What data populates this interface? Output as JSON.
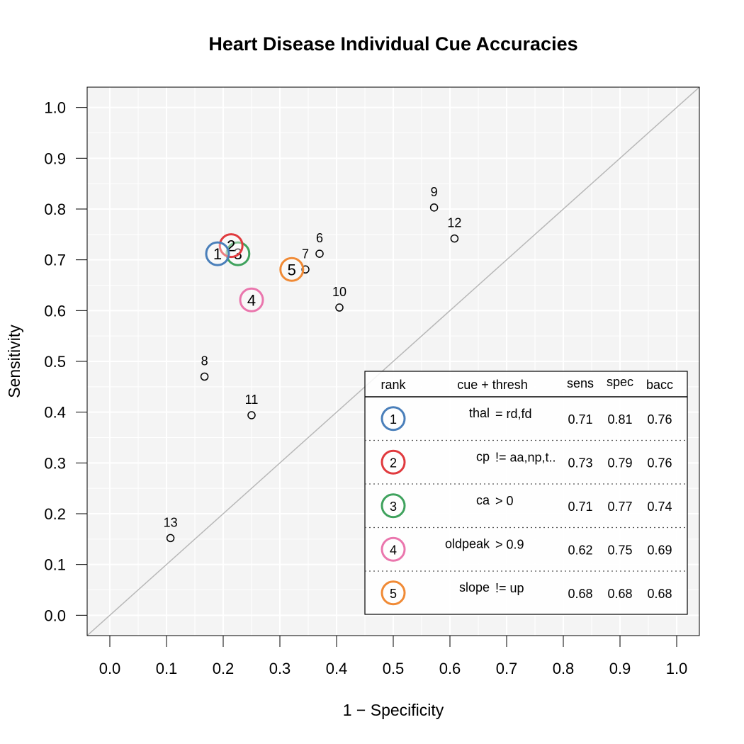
{
  "chart_data": {
    "type": "scatter",
    "title": "Heart Disease Individual Cue Accuracies",
    "xlabel": "1 − Specificity",
    "ylabel": "Sensitivity",
    "xlim": [
      -0.04,
      1.04
    ],
    "ylim": [
      -0.04,
      1.04
    ],
    "x_ticks": [
      "0.0",
      "0.1",
      "0.2",
      "0.3",
      "0.4",
      "0.5",
      "0.6",
      "0.7",
      "0.8",
      "0.9",
      "1.0"
    ],
    "y_ticks": [
      "0.0",
      "0.1",
      "0.2",
      "0.3",
      "0.4",
      "0.5",
      "0.6",
      "0.7",
      "0.8",
      "0.9",
      "1.0"
    ],
    "grid": true,
    "diagonal_reference_line": true,
    "points": [
      {
        "label": "6",
        "x": 0.37,
        "y": 0.712
      },
      {
        "label": "7",
        "x": 0.345,
        "y": 0.681
      },
      {
        "label": "8",
        "x": 0.167,
        "y": 0.47
      },
      {
        "label": "9",
        "x": 0.572,
        "y": 0.803
      },
      {
        "label": "10",
        "x": 0.405,
        "y": 0.606
      },
      {
        "label": "11",
        "x": 0.25,
        "y": 0.394
      },
      {
        "label": "12",
        "x": 0.608,
        "y": 0.742
      },
      {
        "label": "13",
        "x": 0.107,
        "y": 0.152
      }
    ],
    "top_cues": [
      {
        "rank": "1",
        "x": 0.19,
        "y": 0.712,
        "color": "#4a7fba"
      },
      {
        "rank": "2",
        "x": 0.214,
        "y": 0.728,
        "color": "#e03a3e"
      },
      {
        "rank": "3",
        "x": 0.226,
        "y": 0.712,
        "color": "#3fa25d"
      },
      {
        "rank": "4",
        "x": 0.25,
        "y": 0.621,
        "color": "#ea76ad"
      },
      {
        "rank": "5",
        "x": 0.321,
        "y": 0.681,
        "color": "#f08a35"
      }
    ],
    "legend": {
      "position": "bottom-right",
      "headers": {
        "rank": "rank",
        "cue": "cue + thresh",
        "sens": "sens",
        "spec": "spec",
        "bacc": "bacc"
      },
      "rows": [
        {
          "rank": "1",
          "cue": "thal",
          "thresh": "= rd,fd",
          "sens": "0.71",
          "spec": "0.81",
          "bacc": "0.76",
          "color": "#4a7fba"
        },
        {
          "rank": "2",
          "cue": "cp",
          "thresh": "!= aa,np,t..",
          "sens": "0.73",
          "spec": "0.79",
          "bacc": "0.76",
          "color": "#e03a3e"
        },
        {
          "rank": "3",
          "cue": "ca",
          "thresh": "> 0",
          "sens": "0.71",
          "spec": "0.77",
          "bacc": "0.74",
          "color": "#3fa25d"
        },
        {
          "rank": "4",
          "cue": "oldpeak",
          "thresh": "> 0.9",
          "sens": "0.62",
          "spec": "0.75",
          "bacc": "0.69",
          "color": "#ea76ad"
        },
        {
          "rank": "5",
          "cue": "slope",
          "thresh": "!= up",
          "sens": "0.68",
          "spec": "0.68",
          "bacc": "0.68",
          "color": "#f08a35"
        }
      ]
    }
  }
}
